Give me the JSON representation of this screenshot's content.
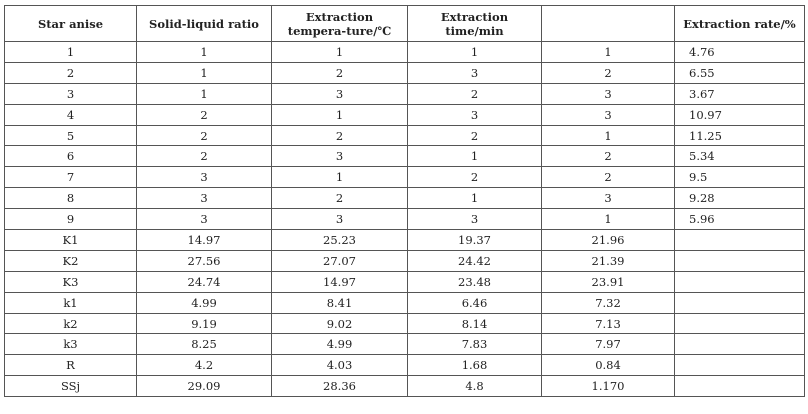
{
  "table": {
    "headers": [
      "Star anise",
      "Solid-liquid ratio",
      "Extraction tempera-ture/℃",
      "Extraction time/min",
      "",
      "Extraction rate/%"
    ],
    "rows": [
      [
        "1",
        "1",
        "1",
        "1",
        "1",
        "4.76"
      ],
      [
        "2",
        "1",
        "2",
        "3",
        "2",
        "6.55"
      ],
      [
        "3",
        "1",
        "3",
        "2",
        "3",
        "3.67"
      ],
      [
        "4",
        "2",
        "1",
        "3",
        "3",
        "10.97"
      ],
      [
        "5",
        "2",
        "2",
        "2",
        "1",
        "11.25"
      ],
      [
        "6",
        "2",
        "3",
        "1",
        "2",
        "5.34"
      ],
      [
        "7",
        "3",
        "1",
        "2",
        "2",
        "9.5"
      ],
      [
        "8",
        "3",
        "2",
        "1",
        "3",
        "9.28"
      ],
      [
        "9",
        "3",
        "3",
        "3",
        "1",
        "5.96"
      ],
      [
        "K1",
        "14.97",
        "25.23",
        "19.37",
        "21.96",
        ""
      ],
      [
        "K2",
        "27.56",
        "27.07",
        "24.42",
        "21.39",
        ""
      ],
      [
        "K3",
        "24.74",
        "14.97",
        "23.48",
        "23.91",
        ""
      ],
      [
        "k1",
        "4.99",
        "8.41",
        "6.46",
        "7.32",
        ""
      ],
      [
        "k2",
        "9.19",
        "9.02",
        "8.14",
        "7.13",
        ""
      ],
      [
        "k3",
        "8.25",
        "4.99",
        "7.83",
        "7.97",
        ""
      ],
      [
        "R",
        "4.2",
        "4.03",
        "1.68",
        "0.84",
        ""
      ],
      [
        "SSj",
        "29.09",
        "28.36",
        "4.8",
        "1.170",
        ""
      ]
    ]
  }
}
